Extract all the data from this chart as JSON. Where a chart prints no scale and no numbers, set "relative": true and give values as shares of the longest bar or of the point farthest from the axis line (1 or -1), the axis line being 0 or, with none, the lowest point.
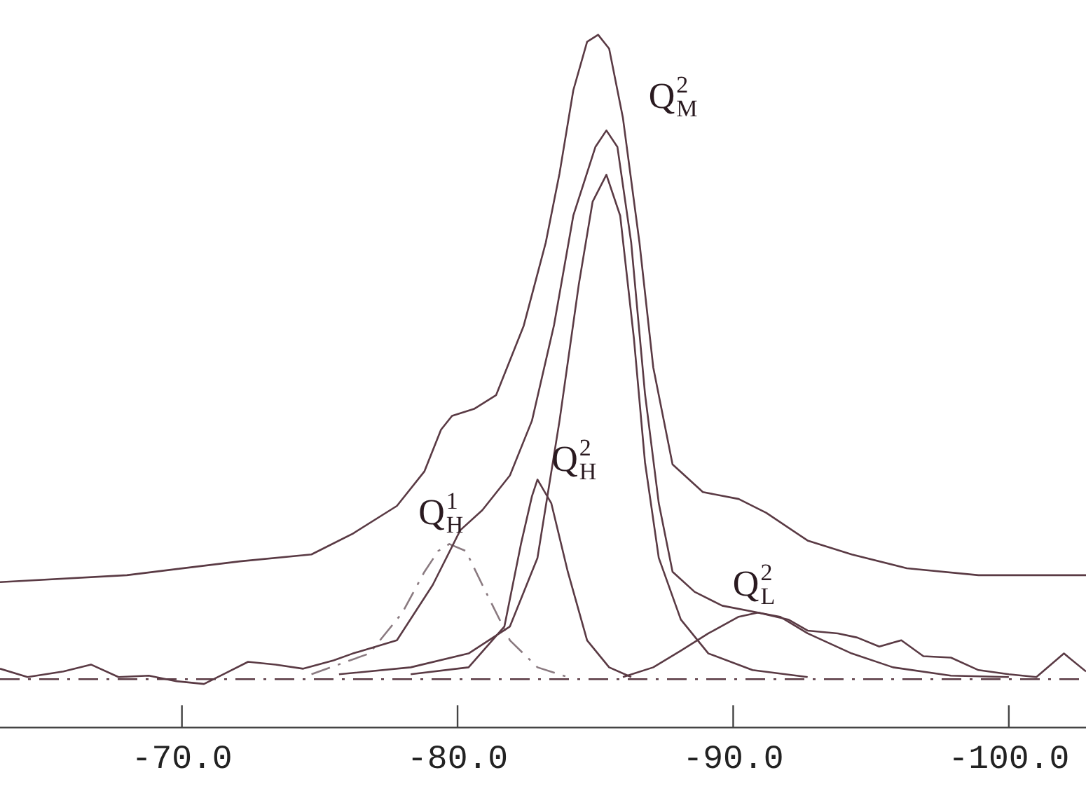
{
  "chart_data": {
    "type": "line",
    "relative": true,
    "xlim": [
      -63.4,
      -102.8
    ],
    "xticks": [
      {
        "value": -70,
        "label": "-70.0"
      },
      {
        "value": -80,
        "label": "-80.0"
      },
      {
        "value": -90,
        "label": "-90.0"
      },
      {
        "value": -100,
        "label": "-100.0"
      }
    ],
    "tick_labels": "x",
    "grid": false,
    "legend": false,
    "marker": "none",
    "series": [
      {
        "name": "Q$^{2}$$_{M}$",
        "color": "#5a3a44",
        "x": [
          -63.4,
          -68.0,
          -72.1,
          -74.7,
          -76.2,
          -77.8,
          -78.8,
          -79.4,
          -79.8,
          -80.6,
          -81.4,
          -82.4,
          -83.2,
          -83.7,
          -84.2,
          -84.7,
          -85.1,
          -85.5,
          -86.0,
          -86.6,
          -87.1,
          -87.8,
          -88.9,
          -90.2,
          -91.2,
          -92.7,
          -94.3,
          -96.3,
          -98.9,
          -102.8
        ],
        "values": [
          0.21,
          0.22,
          0.24,
          0.25,
          0.28,
          0.32,
          0.37,
          0.43,
          0.45,
          0.46,
          0.48,
          0.58,
          0.7,
          0.8,
          0.92,
          0.99,
          1,
          0.98,
          0.88,
          0.7,
          0.52,
          0.38,
          0.34,
          0.33,
          0.31,
          0.27,
          0.25,
          0.23,
          0.22,
          0.22
        ]
      },
      {
        "color": "#5a3a44",
        "x": [
          -63.4,
          -64.4,
          -65.7,
          -66.7,
          -67.7,
          -68.8,
          -69.8,
          -70.8,
          -71.6,
          -72.4,
          -73.4,
          -74.4,
          -75.5,
          -76.2,
          -77.8,
          -79.1,
          -80.1,
          -80.9,
          -81.9,
          -82.7,
          -83.5,
          -84.2,
          -85.0,
          -85.4,
          -85.8,
          -86.3,
          -86.8,
          -87.3,
          -87.8,
          -88.6,
          -89.6,
          -90.9,
          -92.0,
          -92.7,
          -93.8,
          -94.5,
          -95.3,
          -96.1,
          -96.9,
          -97.9,
          -98.9,
          -100.0,
          -101.0,
          -102.0,
          -102.8
        ],
        "values": [
          0.085,
          0.073,
          0.081,
          0.091,
          0.073,
          0.075,
          0.067,
          0.063,
          0.079,
          0.095,
          0.091,
          0.085,
          0.097,
          0.107,
          0.126,
          0.206,
          0.285,
          0.314,
          0.364,
          0.443,
          0.581,
          0.739,
          0.838,
          0.862,
          0.838,
          0.7,
          0.482,
          0.324,
          0.225,
          0.196,
          0.176,
          0.166,
          0.156,
          0.14,
          0.136,
          0.13,
          0.117,
          0.126,
          0.103,
          0.101,
          0.083,
          0.077,
          0.073,
          0.107,
          0.081
        ]
      },
      {
        "color": "#5a3a44",
        "x": [
          -75.7,
          -78.3,
          -80.4,
          -81.9,
          -82.9,
          -83.7,
          -84.4,
          -84.9,
          -85.4,
          -85.9,
          -86.4,
          -86.8,
          -87.3,
          -88.1,
          -89.1,
          -90.7,
          -92.7
        ],
        "values": [
          0.077,
          0.087,
          0.107,
          0.146,
          0.245,
          0.443,
          0.64,
          0.759,
          0.798,
          0.739,
          0.561,
          0.383,
          0.245,
          0.156,
          0.107,
          0.083,
          0.073
        ]
      },
      {
        "name": "Q$^{2}$$_{H}$",
        "color": "#5a3a44",
        "x": [
          -78.3,
          -80.4,
          -81.7,
          -82.3,
          -82.7,
          -82.9,
          -83.4,
          -84.0,
          -84.7,
          -85.5,
          -86.3
        ],
        "values": [
          0.077,
          0.087,
          0.146,
          0.265,
          0.334,
          0.358,
          0.324,
          0.225,
          0.126,
          0.087,
          0.073
        ]
      },
      {
        "name": "Q$^{1}$$_{H}$",
        "color": "#8a7a80",
        "line_style": "dashed",
        "x": [
          -74.7,
          -76.8,
          -78.0,
          -78.8,
          -79.3,
          -79.7,
          -80.3,
          -80.9,
          -81.9,
          -82.9,
          -84.0
        ],
        "values": [
          0.077,
          0.107,
          0.166,
          0.225,
          0.255,
          0.265,
          0.255,
          0.206,
          0.126,
          0.087,
          0.073
        ]
      },
      {
        "name": "Q$^{2}$$_{L}$",
        "color": "#5a3a44",
        "x": [
          -86.0,
          -87.1,
          -88.1,
          -89.1,
          -90.2,
          -90.9,
          -91.7,
          -92.7,
          -94.3,
          -95.8,
          -97.9,
          -100.0
        ],
        "values": [
          0.073,
          0.087,
          0.111,
          0.136,
          0.16,
          0.166,
          0.16,
          0.136,
          0.107,
          0.087,
          0.075,
          0.073
        ]
      }
    ],
    "ref_lines": [
      {
        "axis": "y",
        "value": 0.07,
        "line_style": "dashed",
        "color": "#5a3a44"
      }
    ]
  }
}
